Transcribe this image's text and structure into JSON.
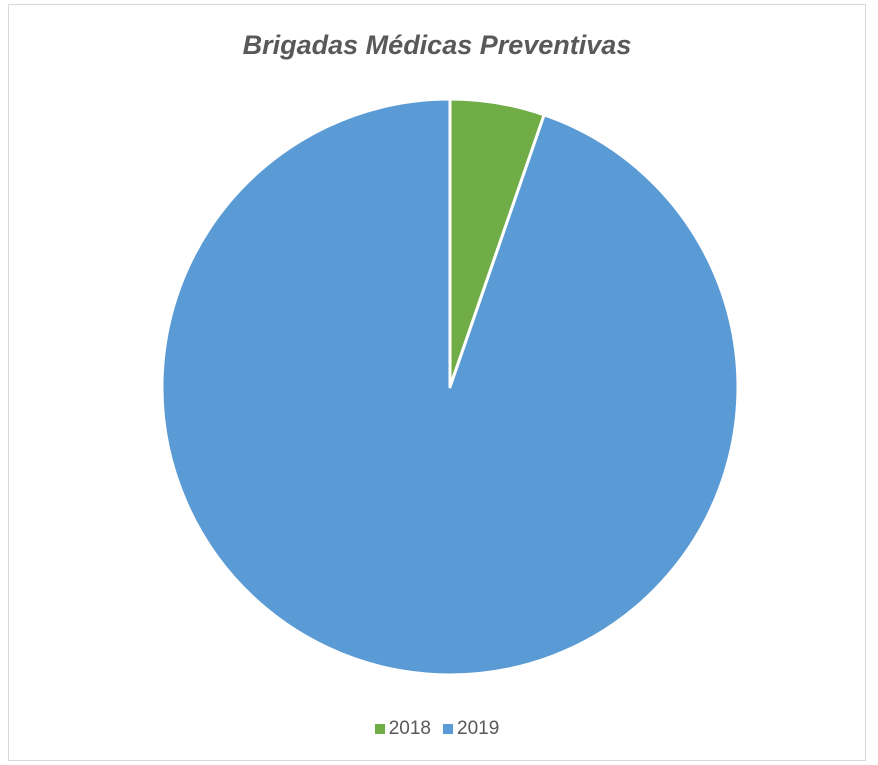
{
  "chart_data": {
    "type": "pie",
    "title": "Brigadas Médicas Preventivas",
    "categories": [
      "2018",
      "2019"
    ],
    "values": [
      5.3,
      94.7
    ],
    "colors": [
      "#70ad47",
      "#5b9bd5"
    ],
    "start_angle": "12 o'clock, clockwise",
    "legend_position": "bottom"
  }
}
